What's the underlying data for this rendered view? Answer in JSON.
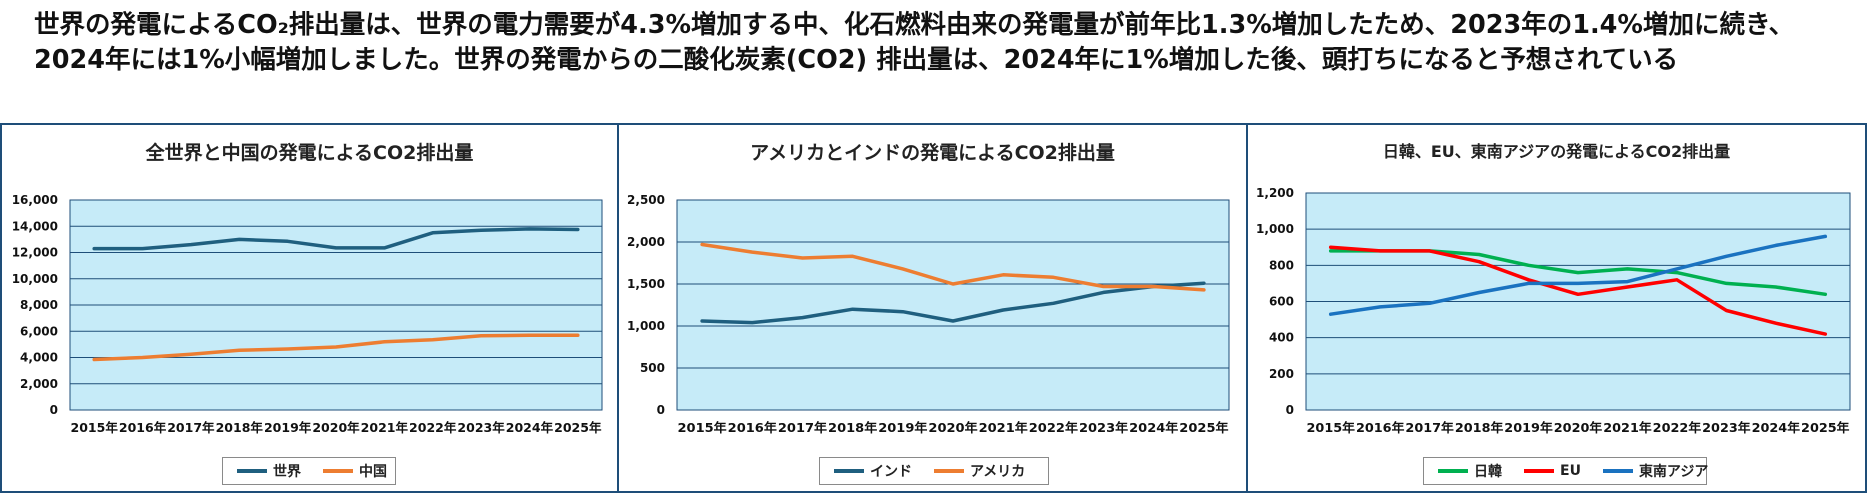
{
  "headline": "世界の発電によるCO₂排出量は、世界の電力需要が4.3%増加する中、化石燃料由来の発電量が前年比1.3%増加したため、2023年の1.4%増加に続き、2024年には1%小幅増加しました。世界の発電からの二酸化炭素(CO2) 排出量は、2024年に1%増加した後、頭打ちになると予想されている",
  "chart_data": [
    {
      "type": "line",
      "title": "全世界と中国の発電によるCO2排出量",
      "categories": [
        "2015年",
        "2016年",
        "2017年",
        "2018年",
        "2019年",
        "2020年",
        "2021年",
        "2022年",
        "2023年",
        "2024年",
        "2025年"
      ],
      "ylim": [
        0,
        16000
      ],
      "yticks": [
        "0",
        "2,000",
        "4,000",
        "6,000",
        "8,000",
        "10,000",
        "12,000",
        "14,000",
        "16,000"
      ],
      "ytick_values": [
        0,
        2000,
        4000,
        6000,
        8000,
        10000,
        12000,
        14000,
        16000
      ],
      "grid": true,
      "legend": "bottom",
      "series": [
        {
          "name": "世界",
          "color": "#1f5f7f",
          "values": [
            12300,
            12300,
            12600,
            13000,
            12850,
            12350,
            12350,
            13500,
            13700,
            13800,
            13750
          ]
        },
        {
          "name": "中国",
          "color": "#ed7d31",
          "values": [
            3850,
            4000,
            4250,
            4550,
            4650,
            4800,
            5200,
            5350,
            5650,
            5700,
            5700
          ]
        }
      ]
    },
    {
      "type": "line",
      "title": "アメリカとインドの発電によるCO2排出量",
      "categories": [
        "2015年",
        "2016年",
        "2017年",
        "2018年",
        "2019年",
        "2020年",
        "2021年",
        "2022年",
        "2023年",
        "2024年",
        "2025年"
      ],
      "ylim": [
        0,
        2500
      ],
      "yticks": [
        "0",
        "500",
        "1,000",
        "1,500",
        "2,000",
        "2,500"
      ],
      "ytick_values": [
        0,
        500,
        1000,
        1500,
        2000,
        2500
      ],
      "grid": true,
      "legend": "bottom",
      "series": [
        {
          "name": "インド",
          "color": "#1f5f7f",
          "values": [
            1060,
            1040,
            1100,
            1200,
            1170,
            1060,
            1190,
            1270,
            1400,
            1470,
            1510
          ]
        },
        {
          "name": "アメリカ",
          "color": "#ed7d31",
          "values": [
            1970,
            1880,
            1810,
            1830,
            1680,
            1500,
            1610,
            1580,
            1470,
            1470,
            1430
          ]
        }
      ]
    },
    {
      "type": "line",
      "title": "日韓、EU、東南アジアの発電によるCO2排出量",
      "categories": [
        "2015年",
        "2016年",
        "2017年",
        "2018年",
        "2019年",
        "2020年",
        "2021年",
        "2022年",
        "2023年",
        "2024年",
        "2025年"
      ],
      "ylim": [
        0,
        1200
      ],
      "yticks": [
        "0",
        "200",
        "400",
        "600",
        "800",
        "1,000",
        "1,200"
      ],
      "ytick_values": [
        0,
        200,
        400,
        600,
        800,
        1000,
        1200
      ],
      "grid": true,
      "legend": "bottom",
      "series": [
        {
          "name": "日韓",
          "color": "#00b050",
          "values": [
            880,
            880,
            880,
            860,
            800,
            760,
            780,
            760,
            700,
            680,
            640
          ]
        },
        {
          "name": "EU",
          "color": "#ff0000",
          "values": [
            900,
            880,
            880,
            820,
            720,
            640,
            680,
            720,
            550,
            480,
            420
          ]
        },
        {
          "name": "東南アジア",
          "color": "#1a72c0",
          "values": [
            530,
            570,
            590,
            650,
            700,
            700,
            710,
            780,
            850,
            910,
            960
          ]
        }
      ]
    }
  ]
}
